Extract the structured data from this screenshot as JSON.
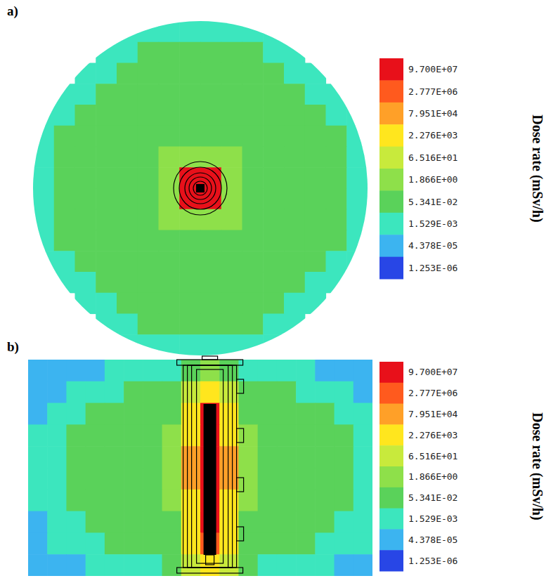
{
  "chart_data": [
    {
      "type": "heatmap",
      "title": "a)",
      "tick_labels": false,
      "colorbar": {
        "title": "Dose rate (mSv/h)",
        "ticks": [
          {
            "value": 97000000.0,
            "label": "9.700E+07"
          },
          {
            "value": 2777000.0,
            "label": "2.777E+06"
          },
          {
            "value": 79510.0,
            "label": "7.951E+04"
          },
          {
            "value": 2276.0,
            "label": "2.276E+03"
          },
          {
            "value": 65.16,
            "label": "6.516E+01"
          },
          {
            "value": 1.866,
            "label": "1.866E+00"
          },
          {
            "value": 0.05341,
            "label": "5.341E-02"
          },
          {
            "value": 0.001529,
            "label": "1.529E-03"
          },
          {
            "value": 4.378e-05,
            "label": "4.378E-05"
          },
          {
            "value": 1.253e-06,
            "label": "1.253E-06"
          }
        ],
        "colors": [
          "#e8101a",
          "#ff5a1e",
          "#ffa028",
          "#ffe61e",
          "#c8ea3c",
          "#8ee04a",
          "#5ad25a",
          "#3ce6be",
          "#3cb4f0",
          "#2846e6"
        ]
      },
      "cells": [
        [
          null,
          null,
          null,
          null,
          0.01,
          0.01,
          0.01,
          0.01,
          0.01,
          0.01,
          0.01,
          0.01,
          null,
          null,
          null,
          null
        ],
        [
          null,
          null,
          null,
          0.01,
          0.01,
          0.3,
          0.3,
          0.3,
          0.3,
          0.3,
          0.3,
          0.01,
          0.01,
          null,
          null,
          null
        ],
        [
          null,
          null,
          0.01,
          0.01,
          0.3,
          0.3,
          0.3,
          0.3,
          0.3,
          0.3,
          0.3,
          0.3,
          0.01,
          0.01,
          null,
          null
        ],
        [
          null,
          0.01,
          0.01,
          0.3,
          0.3,
          0.3,
          0.3,
          0.3,
          0.3,
          0.3,
          0.3,
          0.3,
          0.3,
          0.01,
          0.01,
          null
        ],
        [
          0.01,
          0.01,
          0.3,
          0.3,
          0.3,
          0.3,
          0.3,
          0.3,
          0.3,
          0.3,
          0.3,
          0.3,
          0.3,
          0.3,
          0.01,
          0.01
        ],
        [
          0.01,
          0.3,
          0.3,
          0.3,
          0.3,
          0.3,
          0.3,
          0.3,
          0.3,
          0.3,
          0.3,
          0.3,
          0.3,
          0.3,
          0.3,
          0.01
        ],
        [
          0.01,
          0.3,
          0.3,
          0.3,
          0.3,
          0.3,
          10,
          10,
          10,
          10,
          0.3,
          0.3,
          0.3,
          0.3,
          0.3,
          0.01
        ],
        [
          0.01,
          0.3,
          0.3,
          0.3,
          0.3,
          0.3,
          10,
          97000000.0,
          97000000.0,
          10,
          0.3,
          0.3,
          0.3,
          0.3,
          0.3,
          0.01
        ],
        [
          0.01,
          0.3,
          0.3,
          0.3,
          0.3,
          0.3,
          10,
          97000000.0,
          97000000.0,
          10,
          0.3,
          0.3,
          0.3,
          0.3,
          0.3,
          0.01
        ],
        [
          0.01,
          0.3,
          0.3,
          0.3,
          0.3,
          0.3,
          10,
          10,
          10,
          10,
          0.3,
          0.3,
          0.3,
          0.3,
          0.3,
          0.01
        ],
        [
          0.01,
          0.3,
          0.3,
          0.3,
          0.3,
          0.3,
          0.3,
          0.3,
          0.3,
          0.3,
          0.3,
          0.3,
          0.3,
          0.3,
          0.3,
          0.01
        ],
        [
          0.01,
          0.01,
          0.3,
          0.3,
          0.3,
          0.3,
          0.3,
          0.3,
          0.3,
          0.3,
          0.3,
          0.3,
          0.3,
          0.3,
          0.01,
          0.01
        ],
        [
          null,
          0.01,
          0.01,
          0.3,
          0.3,
          0.3,
          0.3,
          0.3,
          0.3,
          0.3,
          0.3,
          0.3,
          0.3,
          0.01,
          0.01,
          null
        ],
        [
          null,
          null,
          0.01,
          0.01,
          0.3,
          0.3,
          0.3,
          0.3,
          0.3,
          0.3,
          0.3,
          0.3,
          0.01,
          0.01,
          null,
          null
        ],
        [
          null,
          null,
          null,
          0.01,
          0.01,
          0.3,
          0.3,
          0.3,
          0.3,
          0.3,
          0.3,
          0.01,
          0.01,
          null,
          null,
          null
        ],
        [
          null,
          null,
          null,
          null,
          0.01,
          0.01,
          0.01,
          0.01,
          0.01,
          0.01,
          0.01,
          0.01,
          null,
          null,
          null,
          null
        ]
      ]
    },
    {
      "type": "heatmap",
      "title": "b)",
      "tick_labels": false,
      "colorbar": {
        "title": "Dose rate (mSv/h)",
        "ticks": [
          {
            "value": 97000000.0,
            "label": "9.700E+07"
          },
          {
            "value": 2777000.0,
            "label": "2.777E+06"
          },
          {
            "value": 79510.0,
            "label": "7.951E+04"
          },
          {
            "value": 2276.0,
            "label": "2.276E+03"
          },
          {
            "value": 65.16,
            "label": "6.516E+01"
          },
          {
            "value": 1.866,
            "label": "1.866E+00"
          },
          {
            "value": 0.05341,
            "label": "5.341E-02"
          },
          {
            "value": 0.001529,
            "label": "1.529E-03"
          },
          {
            "value": 4.378e-05,
            "label": "4.378E-05"
          },
          {
            "value": 1.253e-06,
            "label": "1.253E-06"
          }
        ],
        "colors": [
          "#e8101a",
          "#ff5a1e",
          "#ffa028",
          "#ffe61e",
          "#c8ea3c",
          "#8ee04a",
          "#5ad25a",
          "#3ce6be",
          "#3cb4f0",
          "#2846e6"
        ]
      },
      "cells": [
        [
          0.0003,
          0.0003,
          0.0003,
          0.0003,
          0.01,
          0.01,
          0.01,
          0.01,
          0.3,
          10,
          0.3,
          0.01,
          0.01,
          0.01,
          0.01,
          0.0003,
          0.0003,
          0.0003
        ],
        [
          0.0003,
          0.0003,
          0.01,
          0.01,
          0.01,
          0.3,
          0.3,
          0.3,
          300,
          10000.0,
          300,
          0.3,
          0.3,
          0.3,
          0.01,
          0.01,
          0.01,
          0.0003
        ],
        [
          0.0003,
          0.01,
          0.01,
          0.3,
          0.3,
          0.3,
          0.3,
          0.3,
          10000.0,
          97000000.0,
          10000.0,
          0.3,
          0.3,
          0.3,
          0.3,
          0.3,
          0.01,
          0.01
        ],
        [
          0.01,
          0.01,
          0.3,
          0.3,
          0.3,
          0.3,
          0.3,
          10,
          10000.0,
          97000000.0,
          10000.0,
          10,
          0.3,
          0.3,
          0.3,
          0.3,
          0.3,
          0.01
        ],
        [
          0.01,
          0.01,
          0.3,
          0.3,
          0.3,
          0.3,
          0.3,
          10,
          300000.0,
          97000000.0,
          300000.0,
          10,
          0.3,
          0.3,
          0.3,
          0.3,
          0.3,
          0.01
        ],
        [
          0.01,
          0.01,
          0.3,
          0.3,
          0.3,
          0.3,
          0.3,
          10,
          300000.0,
          97000000.0,
          300000.0,
          10,
          0.3,
          0.3,
          0.3,
          0.3,
          0.3,
          0.01
        ],
        [
          0.01,
          0.01,
          0.3,
          0.3,
          0.3,
          0.3,
          0.3,
          10,
          10000.0,
          97000000.0,
          10000.0,
          10,
          0.3,
          0.3,
          0.3,
          0.3,
          0.3,
          0.01
        ],
        [
          0.0003,
          0.01,
          0.01,
          0.3,
          0.3,
          0.3,
          0.3,
          0.3,
          10000.0,
          97000000.0,
          10000.0,
          0.3,
          0.3,
          0.3,
          0.3,
          0.3,
          0.01,
          0.01
        ],
        [
          0.0003,
          0.01,
          0.01,
          0.01,
          0.3,
          0.3,
          0.3,
          0.3,
          10000.0,
          10000000.0,
          10000.0,
          0.3,
          0.3,
          0.3,
          0.3,
          0.01,
          0.01,
          0.01
        ],
        [
          0.0003,
          0.0003,
          0.0003,
          0.01,
          0.01,
          0.01,
          0.01,
          0.3,
          300,
          10000.0,
          300,
          0.3,
          0.01,
          0.01,
          0.01,
          0.01,
          0.0003,
          0.0003
        ]
      ]
    }
  ]
}
